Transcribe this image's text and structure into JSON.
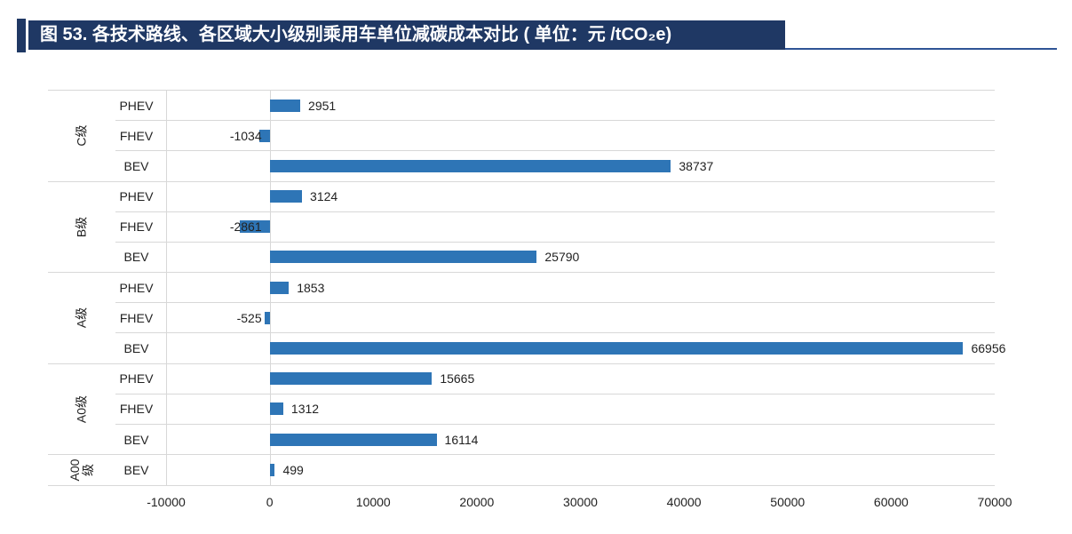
{
  "header": {
    "title": "图 53. 各技术路线、各区域大小级别乘用车单位减碳成本对比 ( 单位：元 /tCO₂e)"
  },
  "colors": {
    "banner_background": "#1F3864",
    "accent_bar": "#1F3864",
    "title_underline": "#2F5496",
    "bar_fill": "#2E75B6",
    "gridline": "#D8D8D8",
    "label_text": "#222222"
  },
  "chart_data": {
    "type": "bar",
    "orientation": "horizontal",
    "title": "各技术路线、各区域大小级别乘用车单位减碳成本对比",
    "unit": "元/tCO₂e",
    "grid": "on",
    "legend": "none",
    "axis": {
      "min": -10000,
      "max": 70000,
      "tick_step": 10000,
      "tick_labels": [
        "-10000",
        "0",
        "10000",
        "20000",
        "30000",
        "40000",
        "50000",
        "60000",
        "70000"
      ]
    },
    "groups": [
      {
        "label": "C级",
        "rows": [
          {
            "series": "PHEV",
            "value": 2951
          },
          {
            "series": "FHEV",
            "value": -1034
          },
          {
            "series": "BEV",
            "value": 38737
          }
        ]
      },
      {
        "label": "B级",
        "rows": [
          {
            "series": "PHEV",
            "value": 3124
          },
          {
            "series": "FHEV",
            "value": -2861
          },
          {
            "series": "BEV",
            "value": 25790
          }
        ]
      },
      {
        "label": "A级",
        "rows": [
          {
            "series": "PHEV",
            "value": 1853
          },
          {
            "series": "FHEV",
            "value": -525
          },
          {
            "series": "BEV",
            "value": 66956
          }
        ]
      },
      {
        "label": "A0级",
        "rows": [
          {
            "series": "PHEV",
            "value": 15665
          },
          {
            "series": "FHEV",
            "value": 1312
          },
          {
            "series": "BEV",
            "value": 16114
          }
        ]
      },
      {
        "label": "A00级",
        "rows": [
          {
            "series": "BEV",
            "value": 499
          }
        ]
      }
    ]
  }
}
